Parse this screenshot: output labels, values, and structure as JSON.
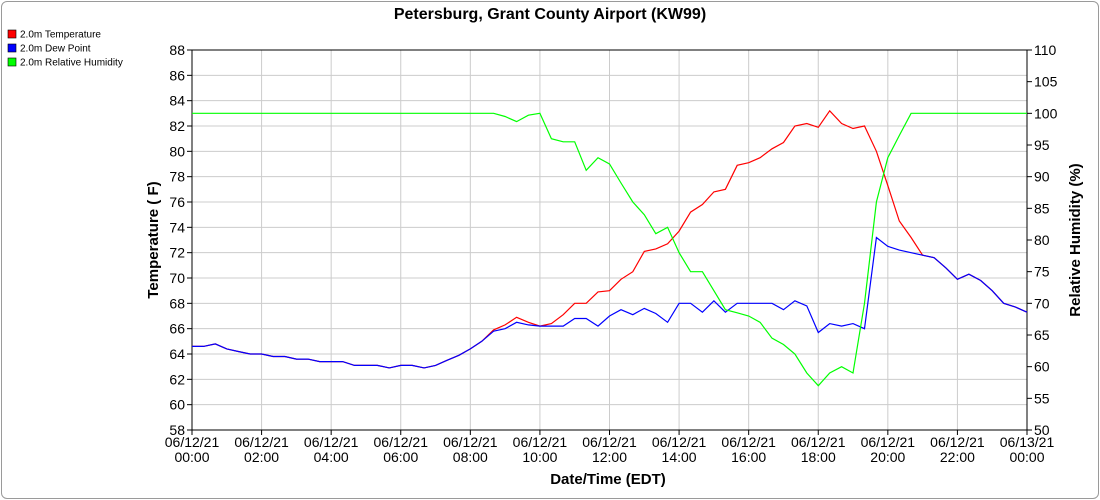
{
  "colors": {
    "temperature": "#ff0000",
    "dew_point": "#0000ff",
    "humidity": "#00ff00",
    "grid": "#cccccc",
    "axis": "#000000"
  },
  "chart_data": {
    "type": "line",
    "title": "Petersburg, Grant County Airport (KW99)",
    "xlabel": "Date/Time (EDT)",
    "ylabel": "Temperature ( F)",
    "y2label": "Relative Humidity (%)",
    "xlim": [
      0,
      24
    ],
    "ylim": [
      58,
      88
    ],
    "y2lim": [
      50,
      110
    ],
    "grid": true,
    "legend_placement": "top-left",
    "x_ticks": [
      {
        "x": 0,
        "line1": "06/12/21",
        "line2": "00:00"
      },
      {
        "x": 2,
        "line1": "06/12/21",
        "line2": "02:00"
      },
      {
        "x": 4,
        "line1": "06/12/21",
        "line2": "04:00"
      },
      {
        "x": 6,
        "line1": "06/12/21",
        "line2": "06:00"
      },
      {
        "x": 8,
        "line1": "06/12/21",
        "line2": "08:00"
      },
      {
        "x": 10,
        "line1": "06/12/21",
        "line2": "10:00"
      },
      {
        "x": 12,
        "line1": "06/12/21",
        "line2": "12:00"
      },
      {
        "x": 14,
        "line1": "06/12/21",
        "line2": "14:00"
      },
      {
        "x": 16,
        "line1": "06/12/21",
        "line2": "16:00"
      },
      {
        "x": 18,
        "line1": "06/12/21",
        "line2": "18:00"
      },
      {
        "x": 20,
        "line1": "06/12/21",
        "line2": "20:00"
      },
      {
        "x": 22,
        "line1": "06/12/21",
        "line2": "22:00"
      },
      {
        "x": 24,
        "line1": "06/13/21",
        "line2": "00:00"
      }
    ],
    "y_ticks": [
      58,
      60,
      62,
      64,
      66,
      68,
      70,
      72,
      74,
      76,
      78,
      80,
      82,
      84,
      86,
      88
    ],
    "y2_ticks": [
      50,
      55,
      60,
      65,
      70,
      75,
      80,
      85,
      90,
      95,
      100,
      105,
      110
    ],
    "series": [
      {
        "name": "2.0m Temperature",
        "color": "#ff0000",
        "axis": "left",
        "x": [
          0,
          0.33,
          0.67,
          1,
          1.33,
          1.67,
          2,
          2.33,
          2.67,
          3,
          3.33,
          3.67,
          4,
          4.33,
          4.67,
          5,
          5.33,
          5.67,
          6,
          6.33,
          6.67,
          7,
          7.33,
          7.67,
          8,
          8.33,
          8.67,
          9,
          9.33,
          9.67,
          10,
          10.33,
          10.67,
          11,
          11.33,
          11.67,
          12,
          12.33,
          12.67,
          13,
          13.33,
          13.67,
          14,
          14.33,
          14.67,
          15,
          15.33,
          15.67,
          16,
          16.33,
          16.67,
          17,
          17.33,
          17.67,
          18,
          18.33,
          18.67,
          19,
          19.33,
          19.67,
          20,
          20.33,
          20.67,
          21,
          21.33,
          21.67,
          22,
          22.33,
          22.67,
          23,
          23.33,
          23.67,
          24
        ],
        "values": [
          64.6,
          64.6,
          64.8,
          64.4,
          64.2,
          64.0,
          64.0,
          63.8,
          63.8,
          63.6,
          63.6,
          63.4,
          63.4,
          63.4,
          63.1,
          63.1,
          63.1,
          62.9,
          63.1,
          63.1,
          62.9,
          63.1,
          63.5,
          63.9,
          64.4,
          65.0,
          65.9,
          66.3,
          66.9,
          66.5,
          66.2,
          66.4,
          67.1,
          68.0,
          68.0,
          68.9,
          69.0,
          69.9,
          70.5,
          72.1,
          72.3,
          72.7,
          73.7,
          75.2,
          75.8,
          76.8,
          77.0,
          78.9,
          79.1,
          79.5,
          80.2,
          80.7,
          82.0,
          82.2,
          81.9,
          83.2,
          82.2,
          81.8,
          82.0,
          80.0,
          77.3,
          74.5,
          73.2,
          71.8,
          71.6,
          70.8,
          69.9,
          70.3,
          69.8,
          69.0,
          68.0,
          67.7,
          67.3
        ]
      },
      {
        "name": "2.0m Dew Point",
        "color": "#0000ff",
        "axis": "left",
        "x": [
          0,
          0.33,
          0.67,
          1,
          1.33,
          1.67,
          2,
          2.33,
          2.67,
          3,
          3.33,
          3.67,
          4,
          4.33,
          4.67,
          5,
          5.33,
          5.67,
          6,
          6.33,
          6.67,
          7,
          7.33,
          7.67,
          8,
          8.33,
          8.67,
          9,
          9.33,
          9.67,
          10,
          10.33,
          10.67,
          11,
          11.33,
          11.67,
          12,
          12.33,
          12.67,
          13,
          13.33,
          13.67,
          14,
          14.33,
          14.67,
          15,
          15.33,
          15.67,
          16,
          16.33,
          16.67,
          17,
          17.33,
          17.67,
          18,
          18.33,
          18.67,
          19,
          19.33,
          19.67,
          20,
          20.33,
          20.67,
          21,
          21.33,
          21.67,
          22,
          22.33,
          22.67,
          23,
          23.33,
          23.67,
          24
        ],
        "values": [
          64.6,
          64.6,
          64.8,
          64.4,
          64.2,
          64.0,
          64.0,
          63.8,
          63.8,
          63.6,
          63.6,
          63.4,
          63.4,
          63.4,
          63.1,
          63.1,
          63.1,
          62.9,
          63.1,
          63.1,
          62.9,
          63.1,
          63.5,
          63.9,
          64.4,
          65.0,
          65.8,
          66.0,
          66.5,
          66.3,
          66.2,
          66.2,
          66.2,
          66.8,
          66.8,
          66.2,
          67.0,
          67.5,
          67.1,
          67.6,
          67.2,
          66.5,
          68.0,
          68.0,
          67.3,
          68.2,
          67.3,
          68.0,
          68.0,
          68.0,
          68.0,
          67.5,
          68.2,
          67.8,
          65.7,
          66.4,
          66.2,
          66.4,
          66.0,
          73.2,
          72.5,
          72.2,
          72.0,
          71.8,
          71.6,
          70.8,
          69.9,
          70.3,
          69.8,
          69.0,
          68.0,
          67.7,
          67.3
        ]
      },
      {
        "name": "2.0m Relative Humidity",
        "color": "#00ff00",
        "axis": "right",
        "x": [
          0,
          8.67,
          9,
          9.33,
          9.67,
          10,
          10.33,
          10.67,
          11,
          11.33,
          11.67,
          12,
          12.33,
          12.67,
          13,
          13.33,
          13.67,
          14,
          14.33,
          14.67,
          15,
          15.33,
          15.67,
          16,
          16.33,
          16.67,
          17,
          17.33,
          17.67,
          18,
          18.33,
          18.67,
          19,
          19.33,
          19.67,
          20,
          20.33,
          20.67,
          21,
          24
        ],
        "values": [
          100,
          100,
          99.5,
          98.7,
          99.7,
          100,
          96,
          95.5,
          95.5,
          91,
          93,
          92,
          89,
          86,
          84,
          81,
          82,
          78,
          75,
          75,
          72,
          69,
          68.5,
          68,
          67,
          64.5,
          63.5,
          62,
          59,
          57,
          59,
          60,
          59,
          70,
          86,
          93,
          96.5,
          100,
          100,
          100
        ]
      }
    ]
  }
}
